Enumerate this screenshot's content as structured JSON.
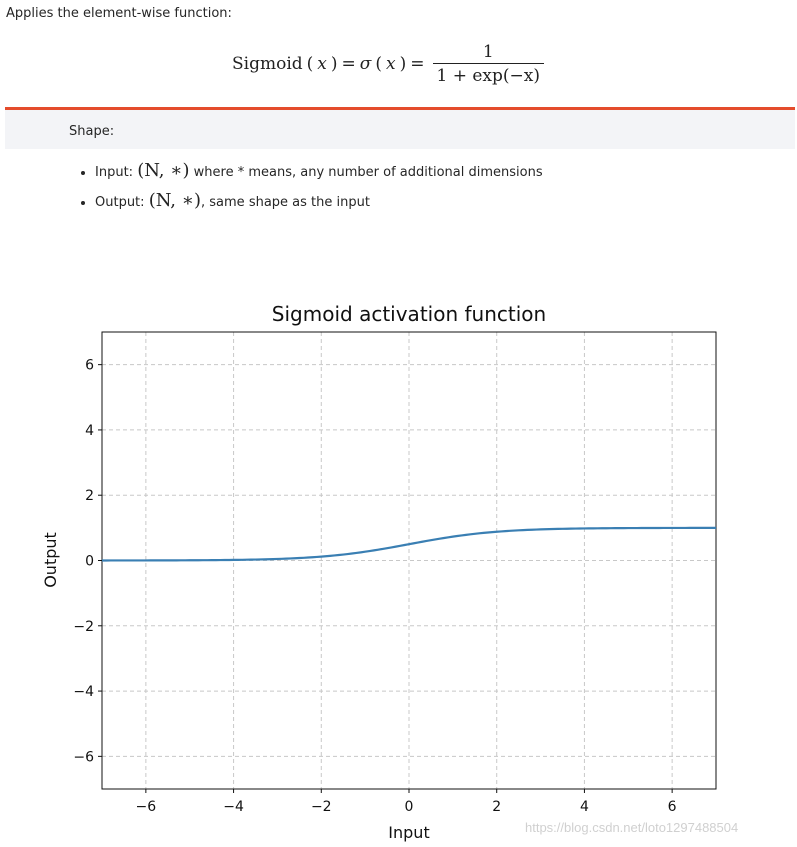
{
  "intro": "Applies the element-wise function:",
  "formula": {
    "lhs": "Sigmoid",
    "var": "x",
    "sigma": "σ",
    "eq": "=",
    "numerator": "1",
    "denominator": "1 + exp(−x)"
  },
  "shape_title": "Shape:",
  "shape_items": [
    {
      "label": "Input:",
      "math": "(N, ∗)",
      "rest": " where * means, any number of additional dimensions"
    },
    {
      "label": "Output:",
      "math": "(N, ∗)",
      "rest": ", same shape as the input"
    }
  ],
  "watermark": "https://blog.csdn.net/loto1297488504",
  "chart_data": {
    "type": "line",
    "title": "Sigmoid activation function",
    "xlabel": "Input",
    "ylabel": "Output",
    "xlim": [
      -7,
      7
    ],
    "ylim": [
      -7,
      7
    ],
    "xticks": [
      -6,
      -4,
      -2,
      0,
      2,
      4,
      6
    ],
    "yticks": [
      -6,
      -4,
      -2,
      0,
      2,
      4,
      6
    ],
    "grid": true,
    "series": [
      {
        "color": "#3a7fb3",
        "x": [
          -7,
          -6,
          -5,
          -4,
          -3,
          -2,
          -1,
          0,
          1,
          2,
          3,
          4,
          5,
          6,
          7
        ],
        "y": [
          0.001,
          0.002,
          0.007,
          0.018,
          0.047,
          0.119,
          0.269,
          0.5,
          0.731,
          0.881,
          0.953,
          0.982,
          0.993,
          0.998,
          0.999
        ]
      }
    ]
  }
}
